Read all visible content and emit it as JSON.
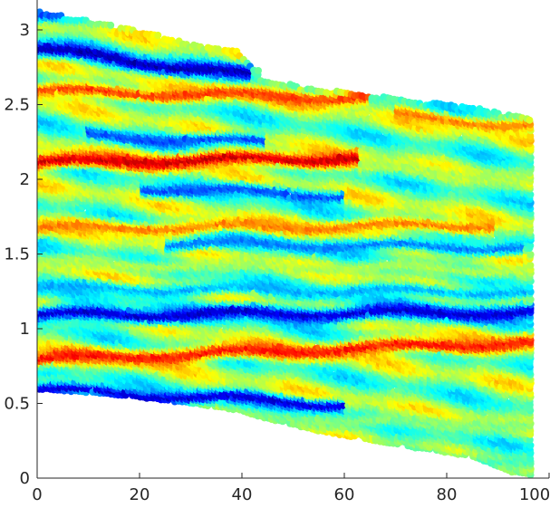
{
  "chart_data": {
    "type": "scatter",
    "title": "",
    "xlabel": "",
    "ylabel": "",
    "xlim": [
      0,
      100
    ],
    "ylim": [
      0,
      3.2
    ],
    "x_ticks": [
      "0",
      "20",
      "40",
      "60",
      "80",
      "100"
    ],
    "y_ticks": [
      "0",
      "0.5",
      "1",
      "1.5",
      "2",
      "2.5",
      "3"
    ],
    "grid": false,
    "colormap": "jet",
    "domain": {
      "x": [
        0,
        0.5,
        16,
        31,
        39,
        45,
        55,
        65,
        75,
        85,
        92,
        97
      ],
      "top": [
        3.12,
        3.12,
        3.02,
        2.9,
        2.86,
        2.66,
        2.6,
        2.56,
        2.52,
        2.48,
        2.43,
        2.4
      ],
      "bottom": [
        0.6,
        0.6,
        0.56,
        0.5,
        0.46,
        0.4,
        0.32,
        0.26,
        0.2,
        0.15,
        0.05,
        0.02
      ]
    },
    "bands": [
      {
        "y0": 3.1,
        "y1": 3.0,
        "v": 0.2,
        "w": 0.05
      },
      {
        "y0": 2.88,
        "y1": 2.7,
        "v": 0.05,
        "w": 0.05,
        "end": 42
      },
      {
        "y0": 2.6,
        "y1": 2.55,
        "v": 0.82,
        "w": 0.045,
        "start": 0,
        "end": 65
      },
      {
        "y0": 2.44,
        "y1": 2.35,
        "v": 0.75,
        "w": 0.04,
        "start": 70
      },
      {
        "y0": 2.3,
        "y1": 2.25,
        "v": 0.2,
        "w": 0.04,
        "start": 10,
        "end": 45
      },
      {
        "y0": 2.12,
        "y1": 2.15,
        "v": 0.92,
        "w": 0.05,
        "start": 0,
        "end": 63
      },
      {
        "y0": 2.08,
        "y1": 2.02,
        "v": 0.55,
        "w": 0.04,
        "start": 63
      },
      {
        "y0": 1.95,
        "y1": 1.9,
        "v": 0.2,
        "w": 0.04,
        "start": 20,
        "end": 60
      },
      {
        "y0": 1.68,
        "y1": 1.7,
        "v": 0.75,
        "w": 0.045,
        "start": 0,
        "end": 90
      },
      {
        "y0": 1.58,
        "y1": 1.55,
        "v": 0.25,
        "w": 0.04,
        "start": 25,
        "end": 95
      },
      {
        "y0": 1.45,
        "y1": 1.4,
        "v": 0.55,
        "w": 0.04
      },
      {
        "y0": 1.28,
        "y1": 1.25,
        "v": 0.3,
        "w": 0.04
      },
      {
        "y0": 1.1,
        "y1": 1.12,
        "v": 0.08,
        "w": 0.05
      },
      {
        "y0": 0.8,
        "y1": 0.92,
        "v": 0.86,
        "w": 0.05
      },
      {
        "y0": 0.6,
        "y1": 0.5,
        "v": 0.08,
        "w": 0.04,
        "end": 60
      },
      {
        "y0": 0.45,
        "y1": 0.35,
        "v": 0.5,
        "w": 0.05
      },
      {
        "y0": 0.25,
        "y1": 0.1,
        "v": 0.45,
        "w": 0.05,
        "start": 40
      }
    ]
  }
}
